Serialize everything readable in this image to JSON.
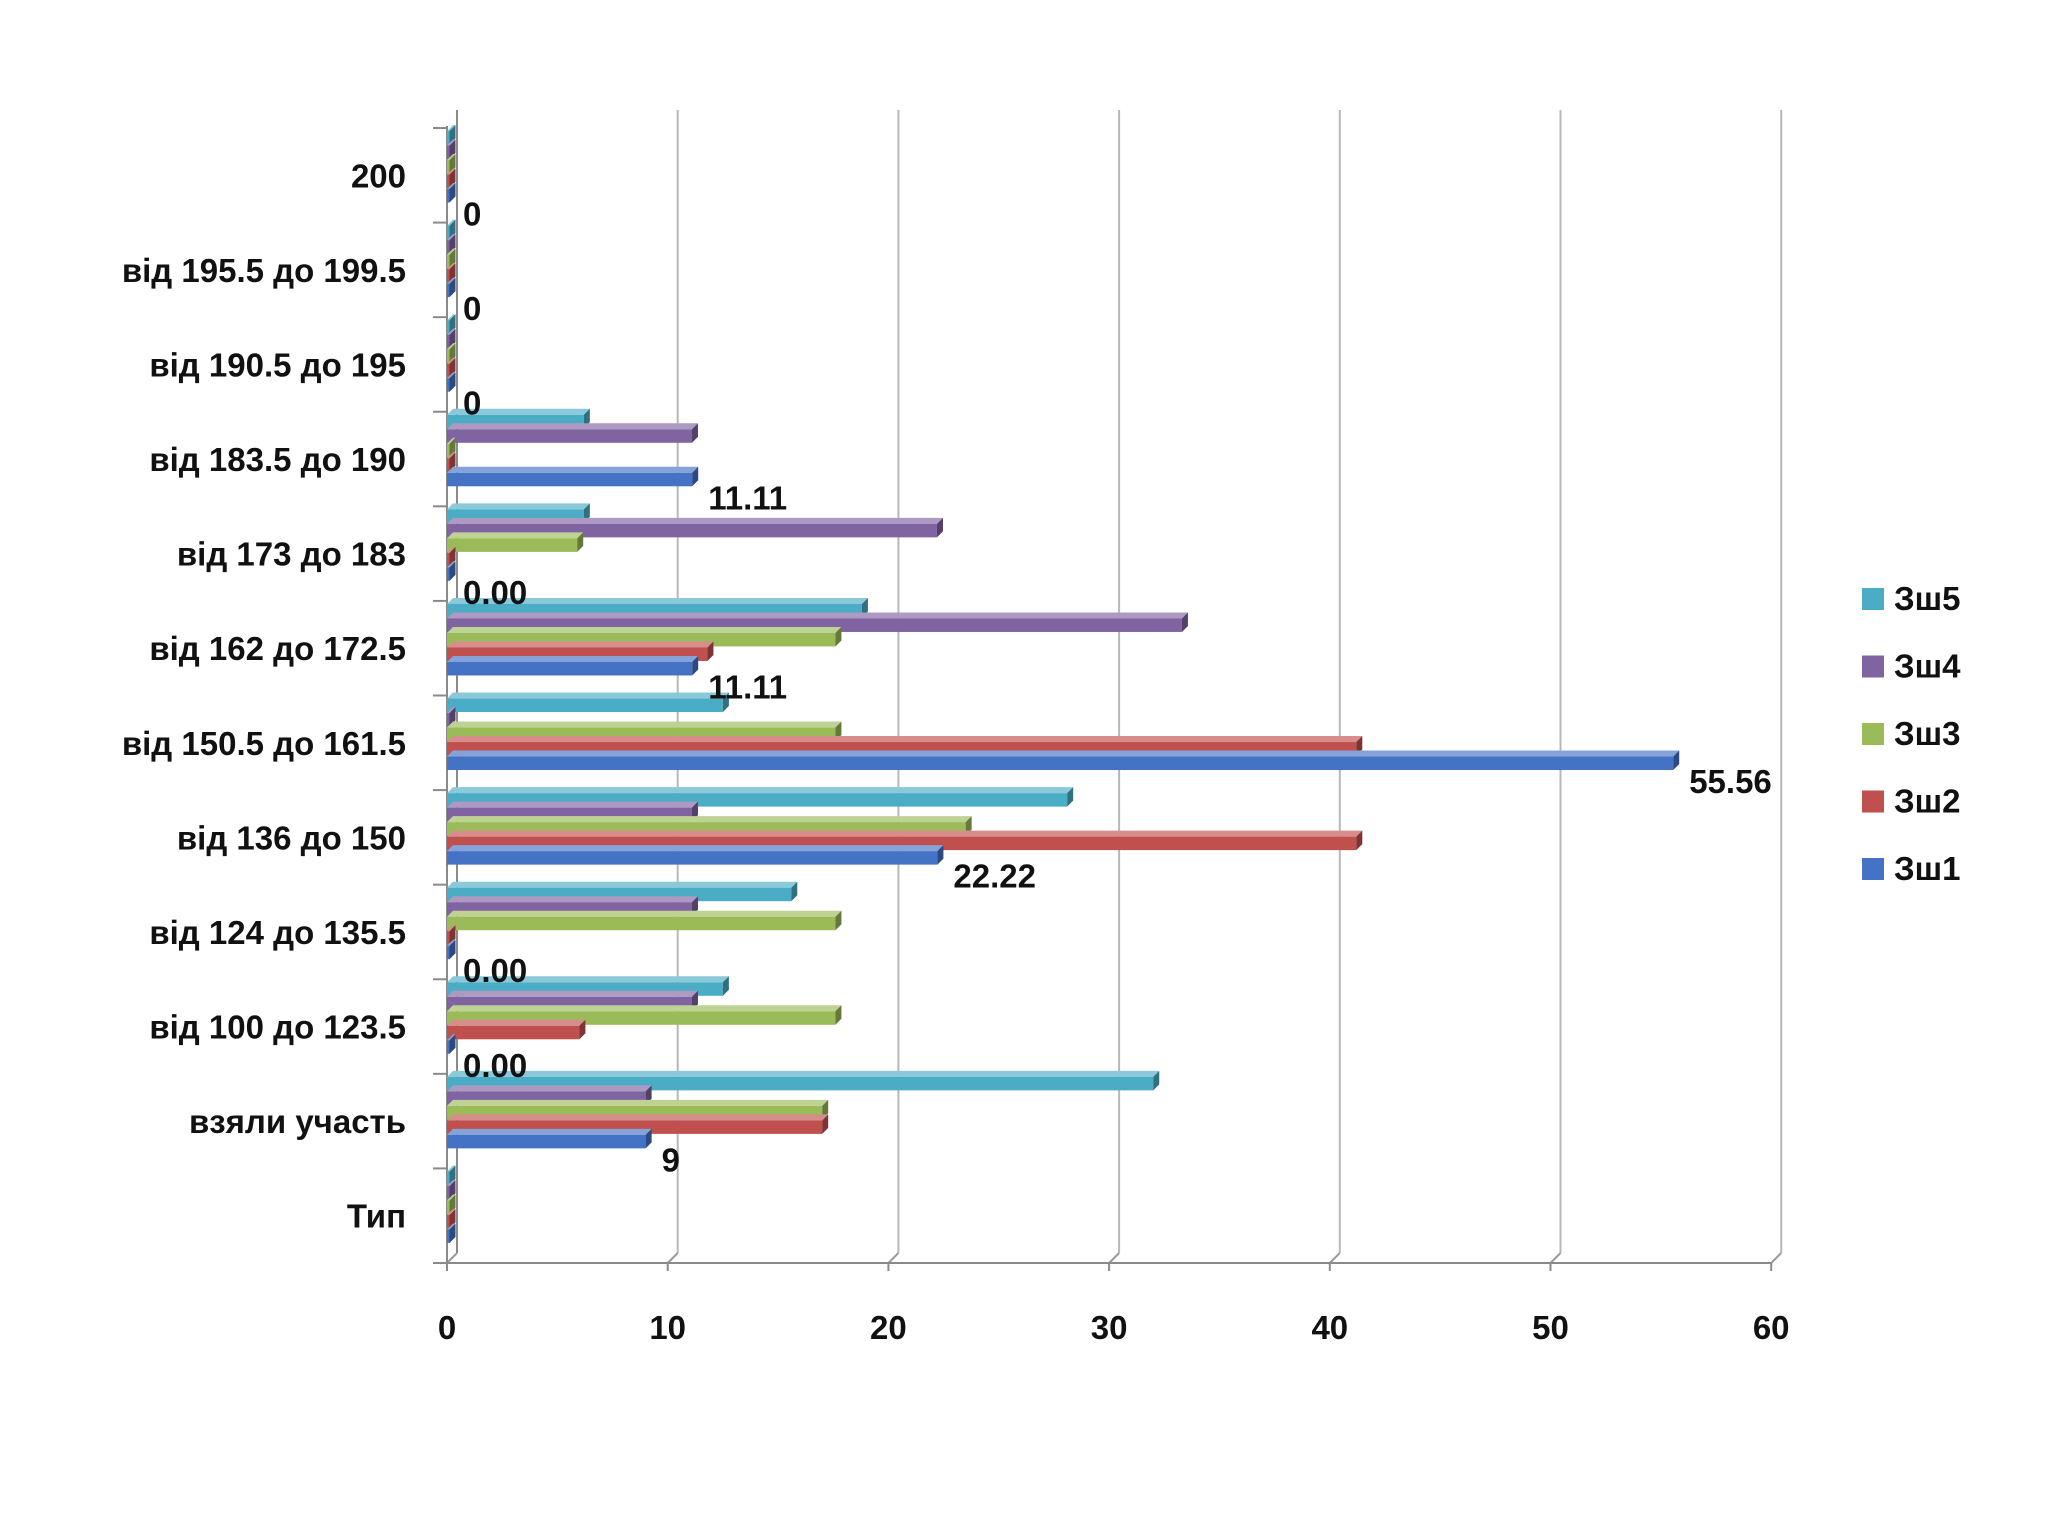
{
  "chart_data": {
    "type": "bar",
    "orientation": "horizontal",
    "title": "",
    "xlabel": "",
    "ylabel": "",
    "xlim": [
      0,
      60
    ],
    "x_ticks": [
      "0",
      "10",
      "20",
      "30",
      "40",
      "50",
      "60"
    ],
    "grid": true,
    "legend_position": "right",
    "categories": [
      "Тип",
      "взяли участь",
      "від 100 до 123.5",
      "від 124 до 135.5",
      "від 136 до 150",
      "від 150.5 до 161.5",
      "від 162 до 172.5",
      "від 173 до 183",
      "від 183.5 до 190",
      "від 190.5 до 195",
      "від 195.5 до 199.5",
      "200"
    ],
    "series": [
      {
        "name": "Зш1",
        "color": "#4472C4",
        "values": [
          0,
          9,
          0,
          0,
          22.22,
          55.56,
          11.11,
          0,
          11.11,
          0,
          0,
          0
        ]
      },
      {
        "name": "Зш2",
        "color": "#C0504D",
        "values": [
          0,
          17,
          6,
          0,
          41.2,
          41.2,
          11.8,
          0,
          0,
          0,
          0,
          0
        ]
      },
      {
        "name": "Зш3",
        "color": "#9BBB59",
        "values": [
          0,
          17,
          17.6,
          17.6,
          23.5,
          17.6,
          17.6,
          5.9,
          0,
          0,
          0,
          0
        ]
      },
      {
        "name": "Зш4",
        "color": "#8064A2",
        "values": [
          0,
          9,
          11.1,
          11.1,
          11.1,
          0,
          33.3,
          22.2,
          11.1,
          0,
          0,
          0
        ]
      },
      {
        "name": "Зш5",
        "color": "#4BACC6",
        "values": [
          0,
          32,
          12.5,
          15.6,
          28.1,
          12.5,
          18.8,
          6.2,
          6.2,
          0,
          0,
          0
        ]
      }
    ],
    "data_labels": {
      "series": "Зш1",
      "values": [
        "",
        "9",
        "0.00",
        "0.00",
        "22.22",
        "55.56",
        "11.11",
        "0.00",
        "11.11",
        "0",
        "0",
        "0"
      ]
    }
  }
}
